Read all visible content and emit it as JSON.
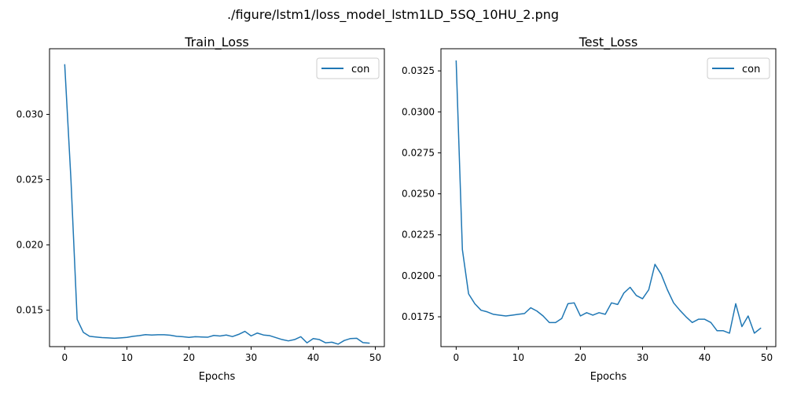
{
  "figure_title": "./figure/lstm1/loss_model_lstm1LD_5SQ_10HU_2.png",
  "colors": {
    "series": "#1f77b4",
    "axis": "#000000"
  },
  "chart_data": [
    {
      "type": "line",
      "title": "Train_Loss",
      "xlabel": "Epochs",
      "ylabel": "",
      "xlim": [
        -2.45,
        51.45
      ],
      "ylim": [
        0.01221,
        0.03503
      ],
      "xticks": [
        0,
        10,
        20,
        30,
        40,
        50
      ],
      "xtick_labels": [
        "0",
        "10",
        "20",
        "30",
        "40",
        "50"
      ],
      "yticks": [
        0.015,
        0.02,
        0.025,
        0.03
      ],
      "ytick_labels": [
        "0.015",
        "0.020",
        "0.025",
        "0.030"
      ],
      "legend_position": "top-right",
      "series": [
        {
          "name": "con",
          "x": [
            0,
            1,
            2,
            3,
            4,
            5,
            6,
            7,
            8,
            9,
            10,
            11,
            12,
            13,
            14,
            15,
            16,
            17,
            18,
            19,
            20,
            21,
            22,
            23,
            24,
            25,
            26,
            27,
            28,
            29,
            30,
            31,
            32,
            33,
            34,
            35,
            36,
            37,
            38,
            39,
            40,
            41,
            42,
            43,
            44,
            45,
            46,
            47,
            48,
            49
          ],
          "y": [
            0.0338,
            0.025,
            0.0143,
            0.0133,
            0.013,
            0.01295,
            0.0129,
            0.01288,
            0.01285,
            0.01288,
            0.01292,
            0.013,
            0.01305,
            0.01313,
            0.0131,
            0.01312,
            0.01312,
            0.01308,
            0.013,
            0.01297,
            0.01292,
            0.01297,
            0.01295,
            0.01293,
            0.01307,
            0.01302,
            0.0131,
            0.01298,
            0.01315,
            0.01338,
            0.01303,
            0.01325,
            0.0131,
            0.01305,
            0.0129,
            0.01275,
            0.01265,
            0.01275,
            0.01297,
            0.0125,
            0.01283,
            0.01275,
            0.0125,
            0.01255,
            0.0124,
            0.01268,
            0.01283,
            0.01285,
            0.01252,
            0.01248
          ]
        }
      ]
    },
    {
      "type": "line",
      "title": "Test_Loss",
      "xlabel": "Epochs",
      "ylabel": "",
      "xlim": [
        -2.45,
        51.45
      ],
      "ylim": [
        0.01568,
        0.03385
      ],
      "xticks": [
        0,
        10,
        20,
        30,
        40,
        50
      ],
      "xtick_labels": [
        "0",
        "10",
        "20",
        "30",
        "40",
        "50"
      ],
      "yticks": [
        0.0175,
        0.02,
        0.0225,
        0.025,
        0.0275,
        0.03,
        0.0325
      ],
      "ytick_labels": [
        "0.0175",
        "0.0200",
        "0.0225",
        "0.0250",
        "0.0275",
        "0.0300",
        "0.0325"
      ],
      "legend_position": "top-right",
      "series": [
        {
          "name": "con",
          "x": [
            0,
            1,
            2,
            3,
            4,
            5,
            6,
            7,
            8,
            9,
            10,
            11,
            12,
            13,
            14,
            15,
            16,
            17,
            18,
            19,
            20,
            21,
            22,
            23,
            24,
            25,
            26,
            27,
            28,
            29,
            30,
            31,
            32,
            33,
            34,
            35,
            36,
            37,
            38,
            39,
            40,
            41,
            42,
            43,
            44,
            45,
            46,
            47,
            48,
            49
          ],
          "y": [
            0.0331,
            0.0216,
            0.0189,
            0.0183,
            0.0179,
            0.0178,
            0.01765,
            0.0176,
            0.01755,
            0.0176,
            0.01765,
            0.0177,
            0.01805,
            0.01785,
            0.01755,
            0.01715,
            0.01715,
            0.0174,
            0.0183,
            0.01835,
            0.01755,
            0.01775,
            0.0176,
            0.01775,
            0.01765,
            0.01835,
            0.01825,
            0.01895,
            0.0193,
            0.0188,
            0.0186,
            0.01915,
            0.0207,
            0.0201,
            0.01915,
            0.01835,
            0.0179,
            0.0175,
            0.01715,
            0.01735,
            0.01735,
            0.01715,
            0.01665,
            0.01665,
            0.0165,
            0.0183,
            0.0169,
            0.01755,
            0.0165,
            0.0168
          ]
        }
      ]
    }
  ]
}
